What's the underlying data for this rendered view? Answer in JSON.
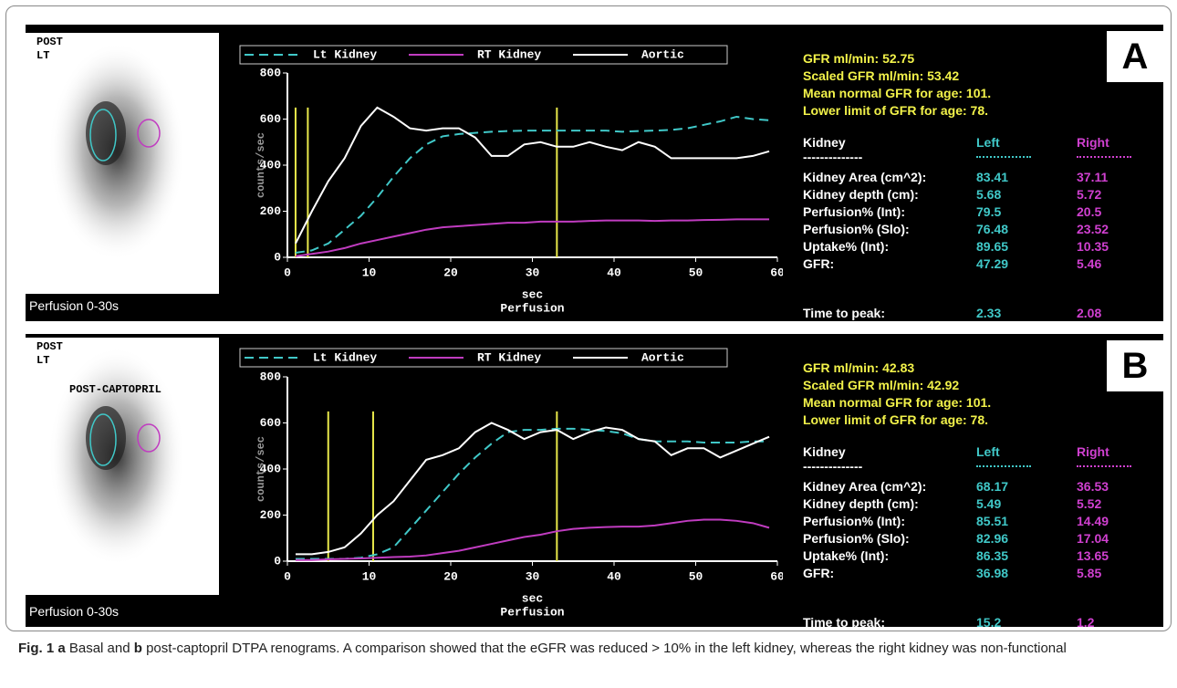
{
  "panels": [
    {
      "label": "A",
      "image_labels": [
        "POST",
        "LT"
      ],
      "image_caption": "Perfusion 0-30s",
      "gfr_lines": [
        "GFR ml/min: 52.75",
        "Scaled GFR ml/min: 53.42",
        "Mean normal GFR for age: 101.",
        "Lower limit of GFR for age: 78."
      ],
      "table": {
        "header": [
          "Kidney",
          "Left",
          "Right"
        ],
        "divider": "--------------",
        "rows": [
          [
            "Kidney Area (cm^2):",
            83.41,
            37.11
          ],
          [
            "Kidney depth (cm):",
            5.68,
            5.72
          ],
          [
            "Perfusion% (Int):",
            79.5,
            20.5
          ],
          [
            "Perfusion% (Slo):",
            76.48,
            23.52
          ],
          [
            "Uptake% (Int):",
            89.65,
            10.35
          ],
          [
            "GFR:",
            47.29,
            5.46
          ]
        ],
        "time_to_peak": [
          "Time to peak:",
          2.33,
          2.08
        ]
      }
    },
    {
      "label": "B",
      "image_labels": [
        "POST",
        "LT"
      ],
      "image_title": "POST-CAPTOPRIL",
      "image_caption": "Perfusion 0-30s",
      "gfr_lines": [
        "GFR ml/min: 42.83",
        "Scaled GFR ml/min: 42.92",
        "Mean normal GFR for age: 101.",
        "Lower limit of GFR for age: 78."
      ],
      "table": {
        "header": [
          "Kidney",
          "Left",
          "Right"
        ],
        "divider": "--------------",
        "rows": [
          [
            "Kidney Area (cm^2):",
            68.17,
            36.53
          ],
          [
            "Kidney depth (cm):",
            5.49,
            5.52
          ],
          [
            "Perfusion% (Int):",
            85.51,
            14.49
          ],
          [
            "Perfusion% (Slo):",
            82.96,
            17.04
          ],
          [
            "Uptake% (Int):",
            86.35,
            13.65
          ],
          [
            "GFR:",
            36.98,
            5.85
          ]
        ],
        "time_to_peak": [
          "Time to peak:",
          15.2,
          1.2
        ]
      }
    }
  ],
  "chart_data": [
    {
      "type": "line",
      "x_label": "sec",
      "subtitle": "Perfusion",
      "y_label": "counts/sec",
      "xlim": [
        0,
        60
      ],
      "ylim": [
        0,
        800
      ],
      "xticks": [
        0,
        10,
        20,
        30,
        40,
        50,
        60
      ],
      "yticks": [
        0,
        200,
        400,
        600,
        800
      ],
      "vertical_lines": [
        1,
        2.5,
        33
      ],
      "vertical_line_color": "#e8e84a",
      "x": [
        1,
        3,
        5,
        7,
        9,
        11,
        13,
        15,
        17,
        19,
        21,
        23,
        25,
        27,
        29,
        31,
        33,
        35,
        37,
        39,
        41,
        43,
        45,
        47,
        49,
        51,
        53,
        55,
        57,
        59
      ],
      "series": [
        {
          "name": "Lt Kidney",
          "color": "#40c8c8",
          "dashed": true,
          "values": [
            20,
            30,
            60,
            120,
            180,
            260,
            350,
            430,
            490,
            525,
            535,
            540,
            545,
            548,
            550,
            550,
            550,
            550,
            550,
            550,
            545,
            548,
            550,
            553,
            560,
            575,
            590,
            610,
            600,
            595
          ]
        },
        {
          "name": "RT Kidney",
          "color": "#c03cc0",
          "dashed": false,
          "values": [
            5,
            15,
            25,
            40,
            60,
            75,
            90,
            105,
            120,
            130,
            135,
            140,
            145,
            150,
            150,
            155,
            155,
            155,
            158,
            160,
            160,
            160,
            158,
            160,
            160,
            162,
            163,
            165,
            165,
            165
          ]
        },
        {
          "name": "Aortic",
          "color": "#ffffff",
          "dashed": false,
          "values": [
            60,
            200,
            330,
            430,
            570,
            650,
            610,
            560,
            550,
            560,
            560,
            520,
            440,
            440,
            490,
            500,
            480,
            480,
            500,
            480,
            465,
            500,
            480,
            430,
            430,
            430,
            430,
            430,
            440,
            460
          ]
        }
      ]
    },
    {
      "type": "line",
      "x_label": "sec",
      "subtitle": "Perfusion",
      "y_label": "counts/sec",
      "xlim": [
        0,
        60
      ],
      "ylim": [
        0,
        800
      ],
      "xticks": [
        0,
        10,
        20,
        30,
        40,
        50,
        60
      ],
      "yticks": [
        0,
        200,
        400,
        600,
        800
      ],
      "vertical_lines": [
        5,
        10.5,
        33
      ],
      "vertical_line_color": "#e8e84a",
      "x": [
        1,
        3,
        5,
        7,
        9,
        11,
        13,
        15,
        17,
        19,
        21,
        23,
        25,
        27,
        29,
        31,
        33,
        35,
        37,
        39,
        41,
        43,
        45,
        47,
        49,
        51,
        53,
        55,
        57,
        59
      ],
      "series": [
        {
          "name": "Lt Kidney",
          "color": "#40c8c8",
          "dashed": true,
          "values": [
            10,
            10,
            10,
            10,
            15,
            30,
            60,
            140,
            220,
            300,
            380,
            450,
            510,
            560,
            570,
            570,
            575,
            575,
            570,
            565,
            555,
            530,
            520,
            520,
            520,
            515,
            515,
            515,
            520,
            520
          ]
        },
        {
          "name": "RT Kidney",
          "color": "#c03cc0",
          "dashed": false,
          "values": [
            5,
            5,
            8,
            10,
            12,
            15,
            18,
            20,
            25,
            35,
            45,
            60,
            75,
            90,
            105,
            115,
            130,
            140,
            145,
            148,
            150,
            150,
            155,
            165,
            175,
            180,
            180,
            175,
            165,
            145
          ]
        },
        {
          "name": "Aortic",
          "color": "#ffffff",
          "dashed": false,
          "values": [
            30,
            30,
            40,
            60,
            120,
            200,
            260,
            350,
            440,
            460,
            490,
            560,
            600,
            570,
            530,
            560,
            570,
            530,
            560,
            580,
            570,
            530,
            520,
            460,
            490,
            490,
            450,
            480,
            510,
            540
          ]
        }
      ]
    }
  ],
  "caption": {
    "label": "Fig. 1",
    "a": "a",
    "text_a": "Basal and",
    "b": "b",
    "text_b": "post-captopril DTPA renograms. A comparison showed that the eGFR was reduced > 10% in the left kidney, whereas the right kidney was non-functional"
  }
}
